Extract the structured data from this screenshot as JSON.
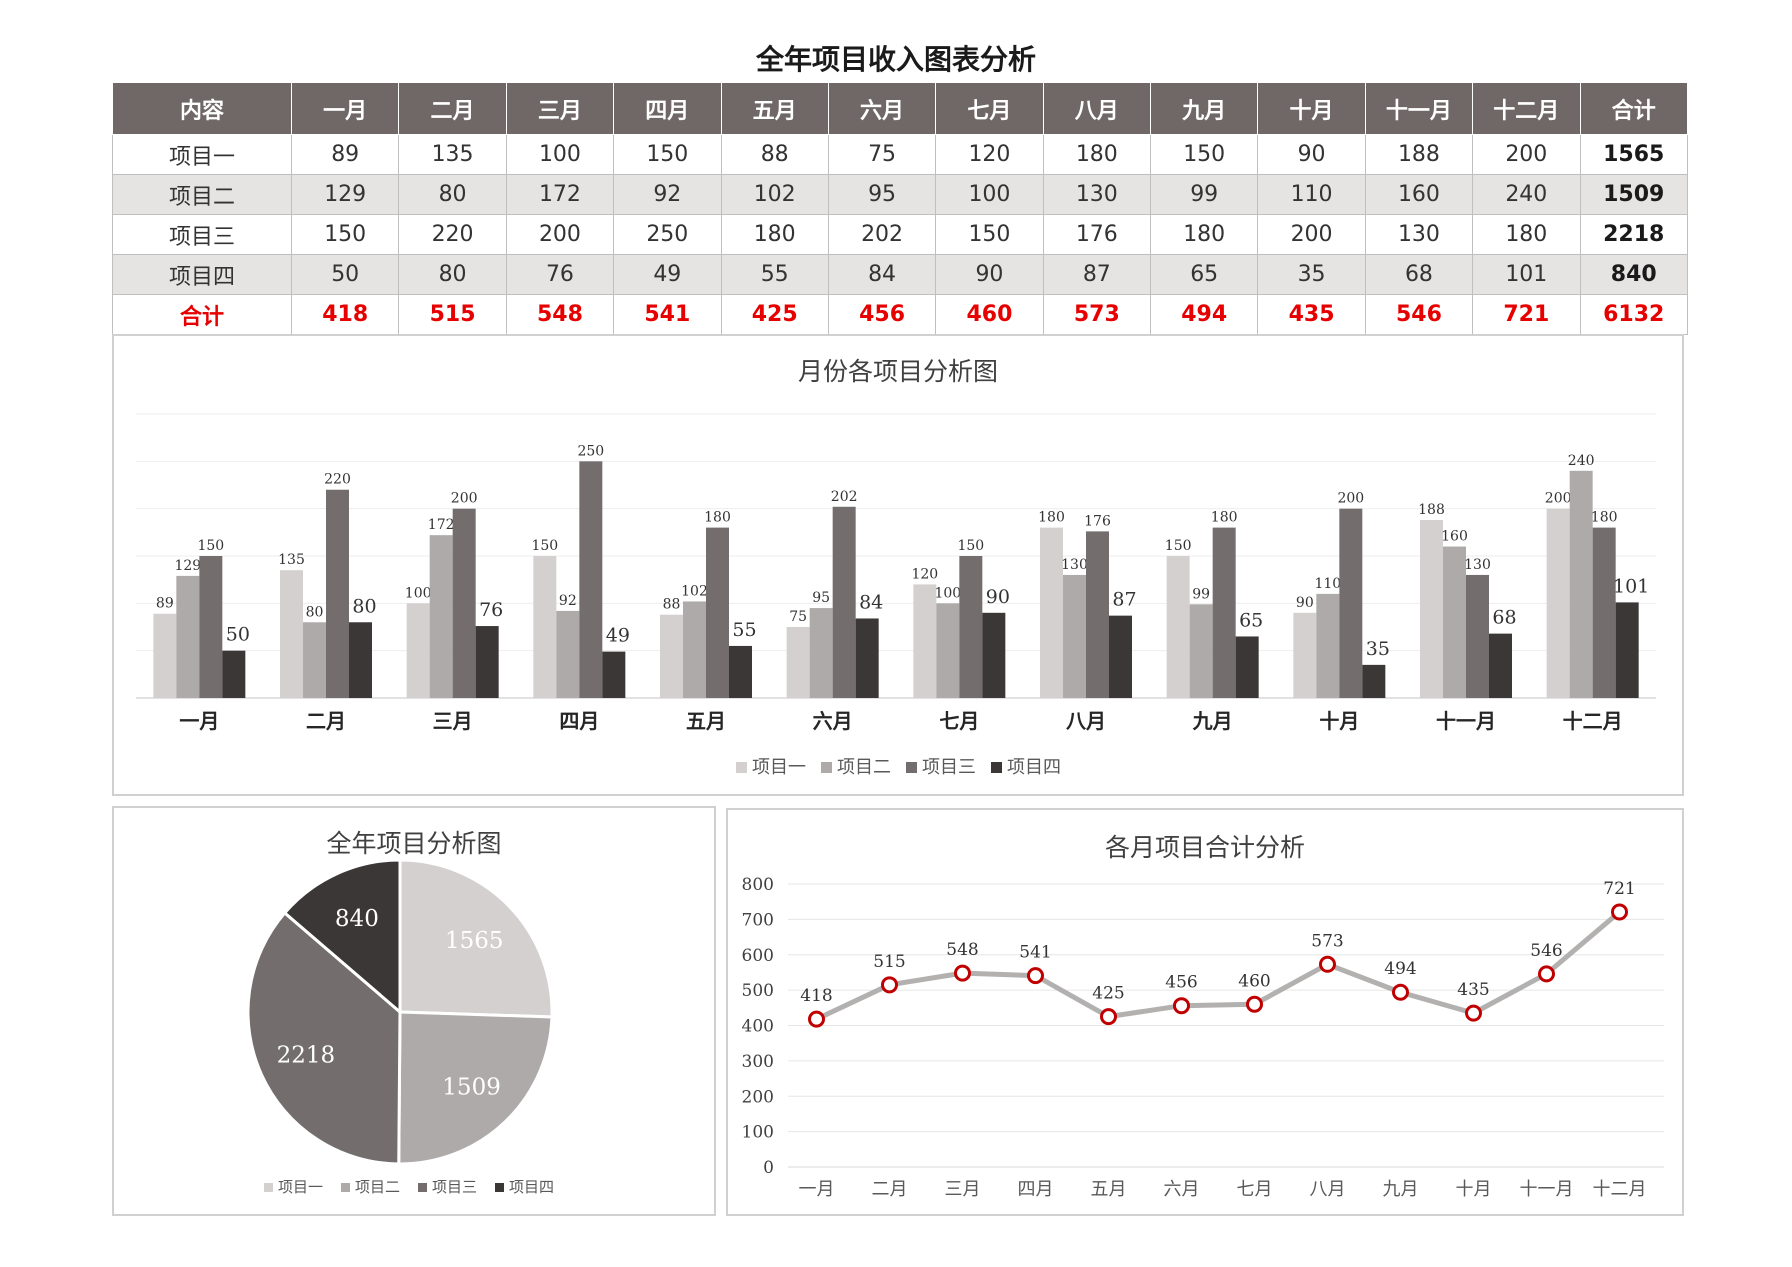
{
  "page_title": "全年项目收入图表分析",
  "table": {
    "headers": [
      "内容",
      "一月",
      "二月",
      "三月",
      "四月",
      "五月",
      "六月",
      "七月",
      "八月",
      "九月",
      "十月",
      "十一月",
      "十二月",
      "合计"
    ],
    "rows": [
      [
        "项目一",
        "89",
        "135",
        "100",
        "150",
        "88",
        "75",
        "120",
        "180",
        "150",
        "90",
        "188",
        "200",
        "1565"
      ],
      [
        "项目二",
        "129",
        "80",
        "172",
        "92",
        "102",
        "95",
        "100",
        "130",
        "99",
        "110",
        "160",
        "240",
        "1509"
      ],
      [
        "项目三",
        "150",
        "220",
        "200",
        "250",
        "180",
        "202",
        "150",
        "176",
        "180",
        "200",
        "130",
        "180",
        "2218"
      ],
      [
        "项目四",
        "50",
        "80",
        "76",
        "49",
        "55",
        "84",
        "90",
        "87",
        "65",
        "35",
        "68",
        "101",
        "840"
      ],
      [
        "合计",
        "418",
        "515",
        "548",
        "541",
        "425",
        "456",
        "460",
        "573",
        "494",
        "435",
        "546",
        "721",
        "6132"
      ]
    ]
  },
  "chart_data": [
    {
      "type": "bar",
      "title": "月份各项目分析图",
      "categories": [
        "一月",
        "二月",
        "三月",
        "四月",
        "五月",
        "六月",
        "七月",
        "八月",
        "九月",
        "十月",
        "十一月",
        "十二月"
      ],
      "series": [
        {
          "name": "项目一",
          "color": "#d4d0d0",
          "values": [
            89,
            135,
            100,
            150,
            88,
            75,
            120,
            180,
            150,
            90,
            188,
            200
          ]
        },
        {
          "name": "项目二",
          "color": "#aeaaaa",
          "values": [
            129,
            80,
            172,
            92,
            102,
            95,
            100,
            130,
            99,
            110,
            160,
            240
          ]
        },
        {
          "name": "项目三",
          "color": "#736e6d",
          "values": [
            150,
            220,
            200,
            250,
            180,
            202,
            150,
            176,
            180,
            200,
            130,
            180
          ]
        },
        {
          "name": "项目四",
          "color": "#3a3736",
          "values": [
            50,
            80,
            76,
            49,
            55,
            84,
            90,
            87,
            65,
            35,
            68,
            101
          ]
        }
      ],
      "ylim": [
        0,
        300
      ],
      "grid": true,
      "legend": "bottom"
    },
    {
      "type": "pie",
      "title": "全年项目分析图",
      "labels": [
        "项目一",
        "项目二",
        "项目三",
        "项目四"
      ],
      "values": [
        1565,
        1509,
        2218,
        840
      ],
      "colors": [
        "#d4d0d0",
        "#aeaaaa",
        "#736e6d",
        "#3a3736"
      ],
      "legend": "bottom"
    },
    {
      "type": "line",
      "title": "各月项目合计分析",
      "categories": [
        "一月",
        "二月",
        "三月",
        "四月",
        "五月",
        "六月",
        "七月",
        "八月",
        "九月",
        "十月",
        "十一月",
        "十二月"
      ],
      "values": [
        418,
        515,
        548,
        541,
        425,
        456,
        460,
        573,
        494,
        435,
        546,
        721
      ],
      "ylim": [
        0,
        800
      ],
      "yticks": [
        0,
        100,
        200,
        300,
        400,
        500,
        600,
        700,
        800
      ],
      "line_color": "#b3b0b0",
      "marker_color": "#c00000",
      "grid": true
    }
  ]
}
